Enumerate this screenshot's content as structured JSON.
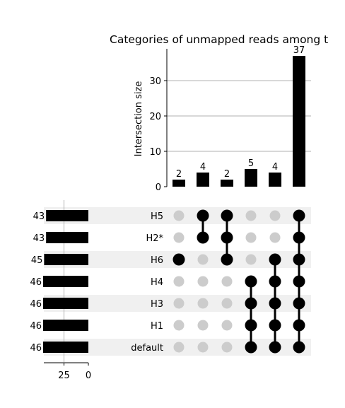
{
  "chart_data": {
    "type": "bar",
    "title": "Categories of unmapped reads among t",
    "ylabel": "Intersection size",
    "ylim": [
      0,
      39
    ],
    "yticks": [
      0,
      10,
      20,
      30
    ],
    "grid": true,
    "sets": [
      "H5",
      "H2*",
      "H6",
      "H4",
      "H3",
      "H1",
      "default"
    ],
    "set_sizes": [
      43,
      43,
      45,
      46,
      46,
      46,
      46
    ],
    "set_size_ticks": [
      "25",
      "0"
    ],
    "intersections": [
      {
        "members": [
          "H6"
        ],
        "size": 2
      },
      {
        "members": [
          "H5",
          "H2*"
        ],
        "size": 4
      },
      {
        "members": [
          "H5",
          "H2*",
          "H6"
        ],
        "size": 2
      },
      {
        "members": [
          "H4",
          "H3",
          "H1",
          "default"
        ],
        "size": 5
      },
      {
        "members": [
          "H6",
          "H4",
          "H3",
          "H1",
          "default"
        ],
        "size": 4
      },
      {
        "members": [
          "H5",
          "H2*",
          "H6",
          "H4",
          "H3",
          "H1",
          "default"
        ],
        "size": 37
      }
    ],
    "colors": {
      "bar": "#000000",
      "active_dot": "#000000",
      "inactive_dot": "#cccccc",
      "stripe": "#f0f0f0",
      "grid": "#b0b0b0"
    }
  }
}
